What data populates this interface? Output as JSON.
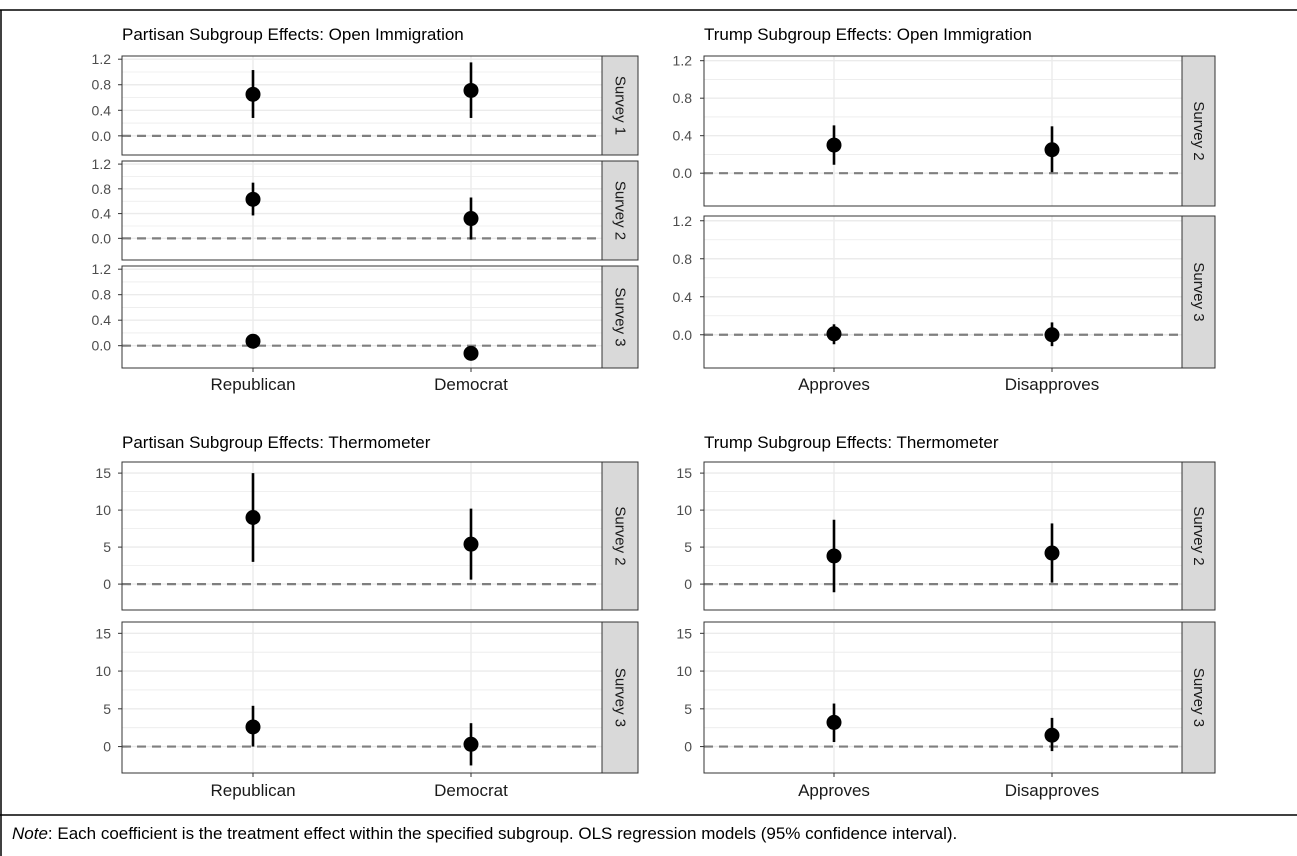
{
  "note": {
    "label": "Note",
    "text": ": Each coefficient is the treatment effect within the specified subgroup. OLS regression models (95% confidence interval)."
  },
  "colors": {
    "strip_fill": "#d9d9d9",
    "grid": "#ebebeb",
    "zero_line": "#7f7f7f",
    "point": "#000000"
  },
  "chart_data": [
    {
      "type": "scatter",
      "title": "Partisan Subgroup Effects: Open Immigration",
      "categories": [
        "Republican",
        "Democrat"
      ],
      "y_ticks": [
        0.0,
        0.4,
        0.8,
        1.2
      ],
      "y_tick_labels": [
        "0.0",
        "0.4",
        "0.8",
        "1.2"
      ],
      "reference_line": 0,
      "panels": [
        {
          "strip": "Survey 1",
          "ylim": [
            -0.3,
            1.25
          ],
          "points": [
            {
              "category": "Republican",
              "estimate": 0.65,
              "lower": 0.28,
              "upper": 1.03
            },
            {
              "category": "Democrat",
              "estimate": 0.71,
              "lower": 0.28,
              "upper": 1.15
            }
          ]
        },
        {
          "strip": "Survey 2",
          "ylim": [
            -0.35,
            1.25
          ],
          "points": [
            {
              "category": "Republican",
              "estimate": 0.63,
              "lower": 0.37,
              "upper": 0.9
            },
            {
              "category": "Democrat",
              "estimate": 0.32,
              "lower": -0.02,
              "upper": 0.66
            }
          ]
        },
        {
          "strip": "Survey 3",
          "ylim": [
            -0.35,
            1.25
          ],
          "points": [
            {
              "category": "Republican",
              "estimate": 0.07,
              "lower": 0.0,
              "upper": 0.14
            },
            {
              "category": "Democrat",
              "estimate": -0.12,
              "lower": -0.22,
              "upper": -0.02
            }
          ]
        }
      ]
    },
    {
      "type": "scatter",
      "title": "Trump Subgroup Effects: Open Immigration",
      "categories": [
        "Approves",
        "Disapproves"
      ],
      "y_ticks": [
        0.0,
        0.4,
        0.8,
        1.2
      ],
      "y_tick_labels": [
        "0.0",
        "0.4",
        "0.8",
        "1.2"
      ],
      "reference_line": 0,
      "panels": [
        {
          "strip": "Survey 2",
          "ylim": [
            -0.35,
            1.25
          ],
          "points": [
            {
              "category": "Approves",
              "estimate": 0.3,
              "lower": 0.09,
              "upper": 0.51
            },
            {
              "category": "Disapproves",
              "estimate": 0.25,
              "lower": 0.01,
              "upper": 0.5
            }
          ]
        },
        {
          "strip": "Survey 3",
          "ylim": [
            -0.35,
            1.25
          ],
          "points": [
            {
              "category": "Approves",
              "estimate": 0.01,
              "lower": -0.1,
              "upper": 0.11
            },
            {
              "category": "Disapproves",
              "estimate": 0.0,
              "lower": -0.12,
              "upper": 0.13
            }
          ]
        }
      ]
    },
    {
      "type": "scatter",
      "title": "Partisan Subgroup Effects: Thermometer",
      "categories": [
        "Republican",
        "Democrat"
      ],
      "y_ticks": [
        0,
        5,
        10,
        15
      ],
      "y_tick_labels": [
        "0",
        "5",
        "10",
        "15"
      ],
      "reference_line": 0,
      "panels": [
        {
          "strip": "Survey 2",
          "ylim": [
            -3.5,
            16.5
          ],
          "points": [
            {
              "category": "Republican",
              "estimate": 9.0,
              "lower": 3.0,
              "upper": 15.0
            },
            {
              "category": "Democrat",
              "estimate": 5.4,
              "lower": 0.6,
              "upper": 10.2
            }
          ]
        },
        {
          "strip": "Survey 3",
          "ylim": [
            -3.5,
            16.5
          ],
          "points": [
            {
              "category": "Republican",
              "estimate": 2.6,
              "lower": 0.0,
              "upper": 5.4
            },
            {
              "category": "Democrat",
              "estimate": 0.3,
              "lower": -2.5,
              "upper": 3.1
            }
          ]
        }
      ]
    },
    {
      "type": "scatter",
      "title": "Trump Subgroup Effects: Thermometer",
      "categories": [
        "Approves",
        "Disapproves"
      ],
      "y_ticks": [
        0,
        5,
        10,
        15
      ],
      "y_tick_labels": [
        "0",
        "5",
        "10",
        "15"
      ],
      "reference_line": 0,
      "panels": [
        {
          "strip": "Survey 2",
          "ylim": [
            -3.5,
            16.5
          ],
          "points": [
            {
              "category": "Approves",
              "estimate": 3.8,
              "lower": -1.1,
              "upper": 8.7
            },
            {
              "category": "Disapproves",
              "estimate": 4.2,
              "lower": 0.2,
              "upper": 8.2
            }
          ]
        },
        {
          "strip": "Survey 3",
          "ylim": [
            -3.5,
            16.5
          ],
          "points": [
            {
              "category": "Approves",
              "estimate": 3.2,
              "lower": 0.6,
              "upper": 5.7
            },
            {
              "category": "Disapproves",
              "estimate": 1.5,
              "lower": -0.6,
              "upper": 3.8
            }
          ]
        }
      ]
    }
  ]
}
